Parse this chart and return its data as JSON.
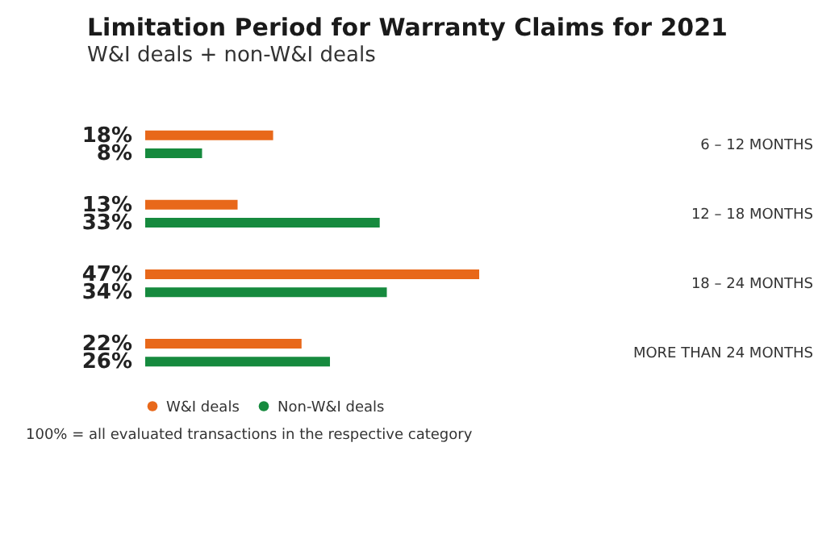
{
  "chart_data": {
    "type": "bar",
    "orientation": "horizontal",
    "title": "Limitation Period for Warranty Claims for 2021",
    "subtitle": "W&I deals + non-W&I deals",
    "categories": [
      "6 – 12 MONTHS",
      "12 – 18 MONTHS",
      "18 – 24 MONTHS",
      "MORE THAN 24 MONTHS"
    ],
    "series": [
      {
        "name": "W&I deals",
        "color": "#e8681a",
        "values": [
          18,
          13,
          47,
          22
        ],
        "value_labels": [
          "18%",
          "13%",
          "47%",
          "22%"
        ]
      },
      {
        "name": "Non-W&I deals",
        "color": "#168a3e",
        "values": [
          8,
          33,
          34,
          26
        ],
        "value_labels": [
          "8%",
          "33%",
          "34%",
          "26%"
        ]
      }
    ],
    "legend": "bottom left",
    "annotations": [
      "100% = all evaluated transactions in the respective category"
    ]
  }
}
